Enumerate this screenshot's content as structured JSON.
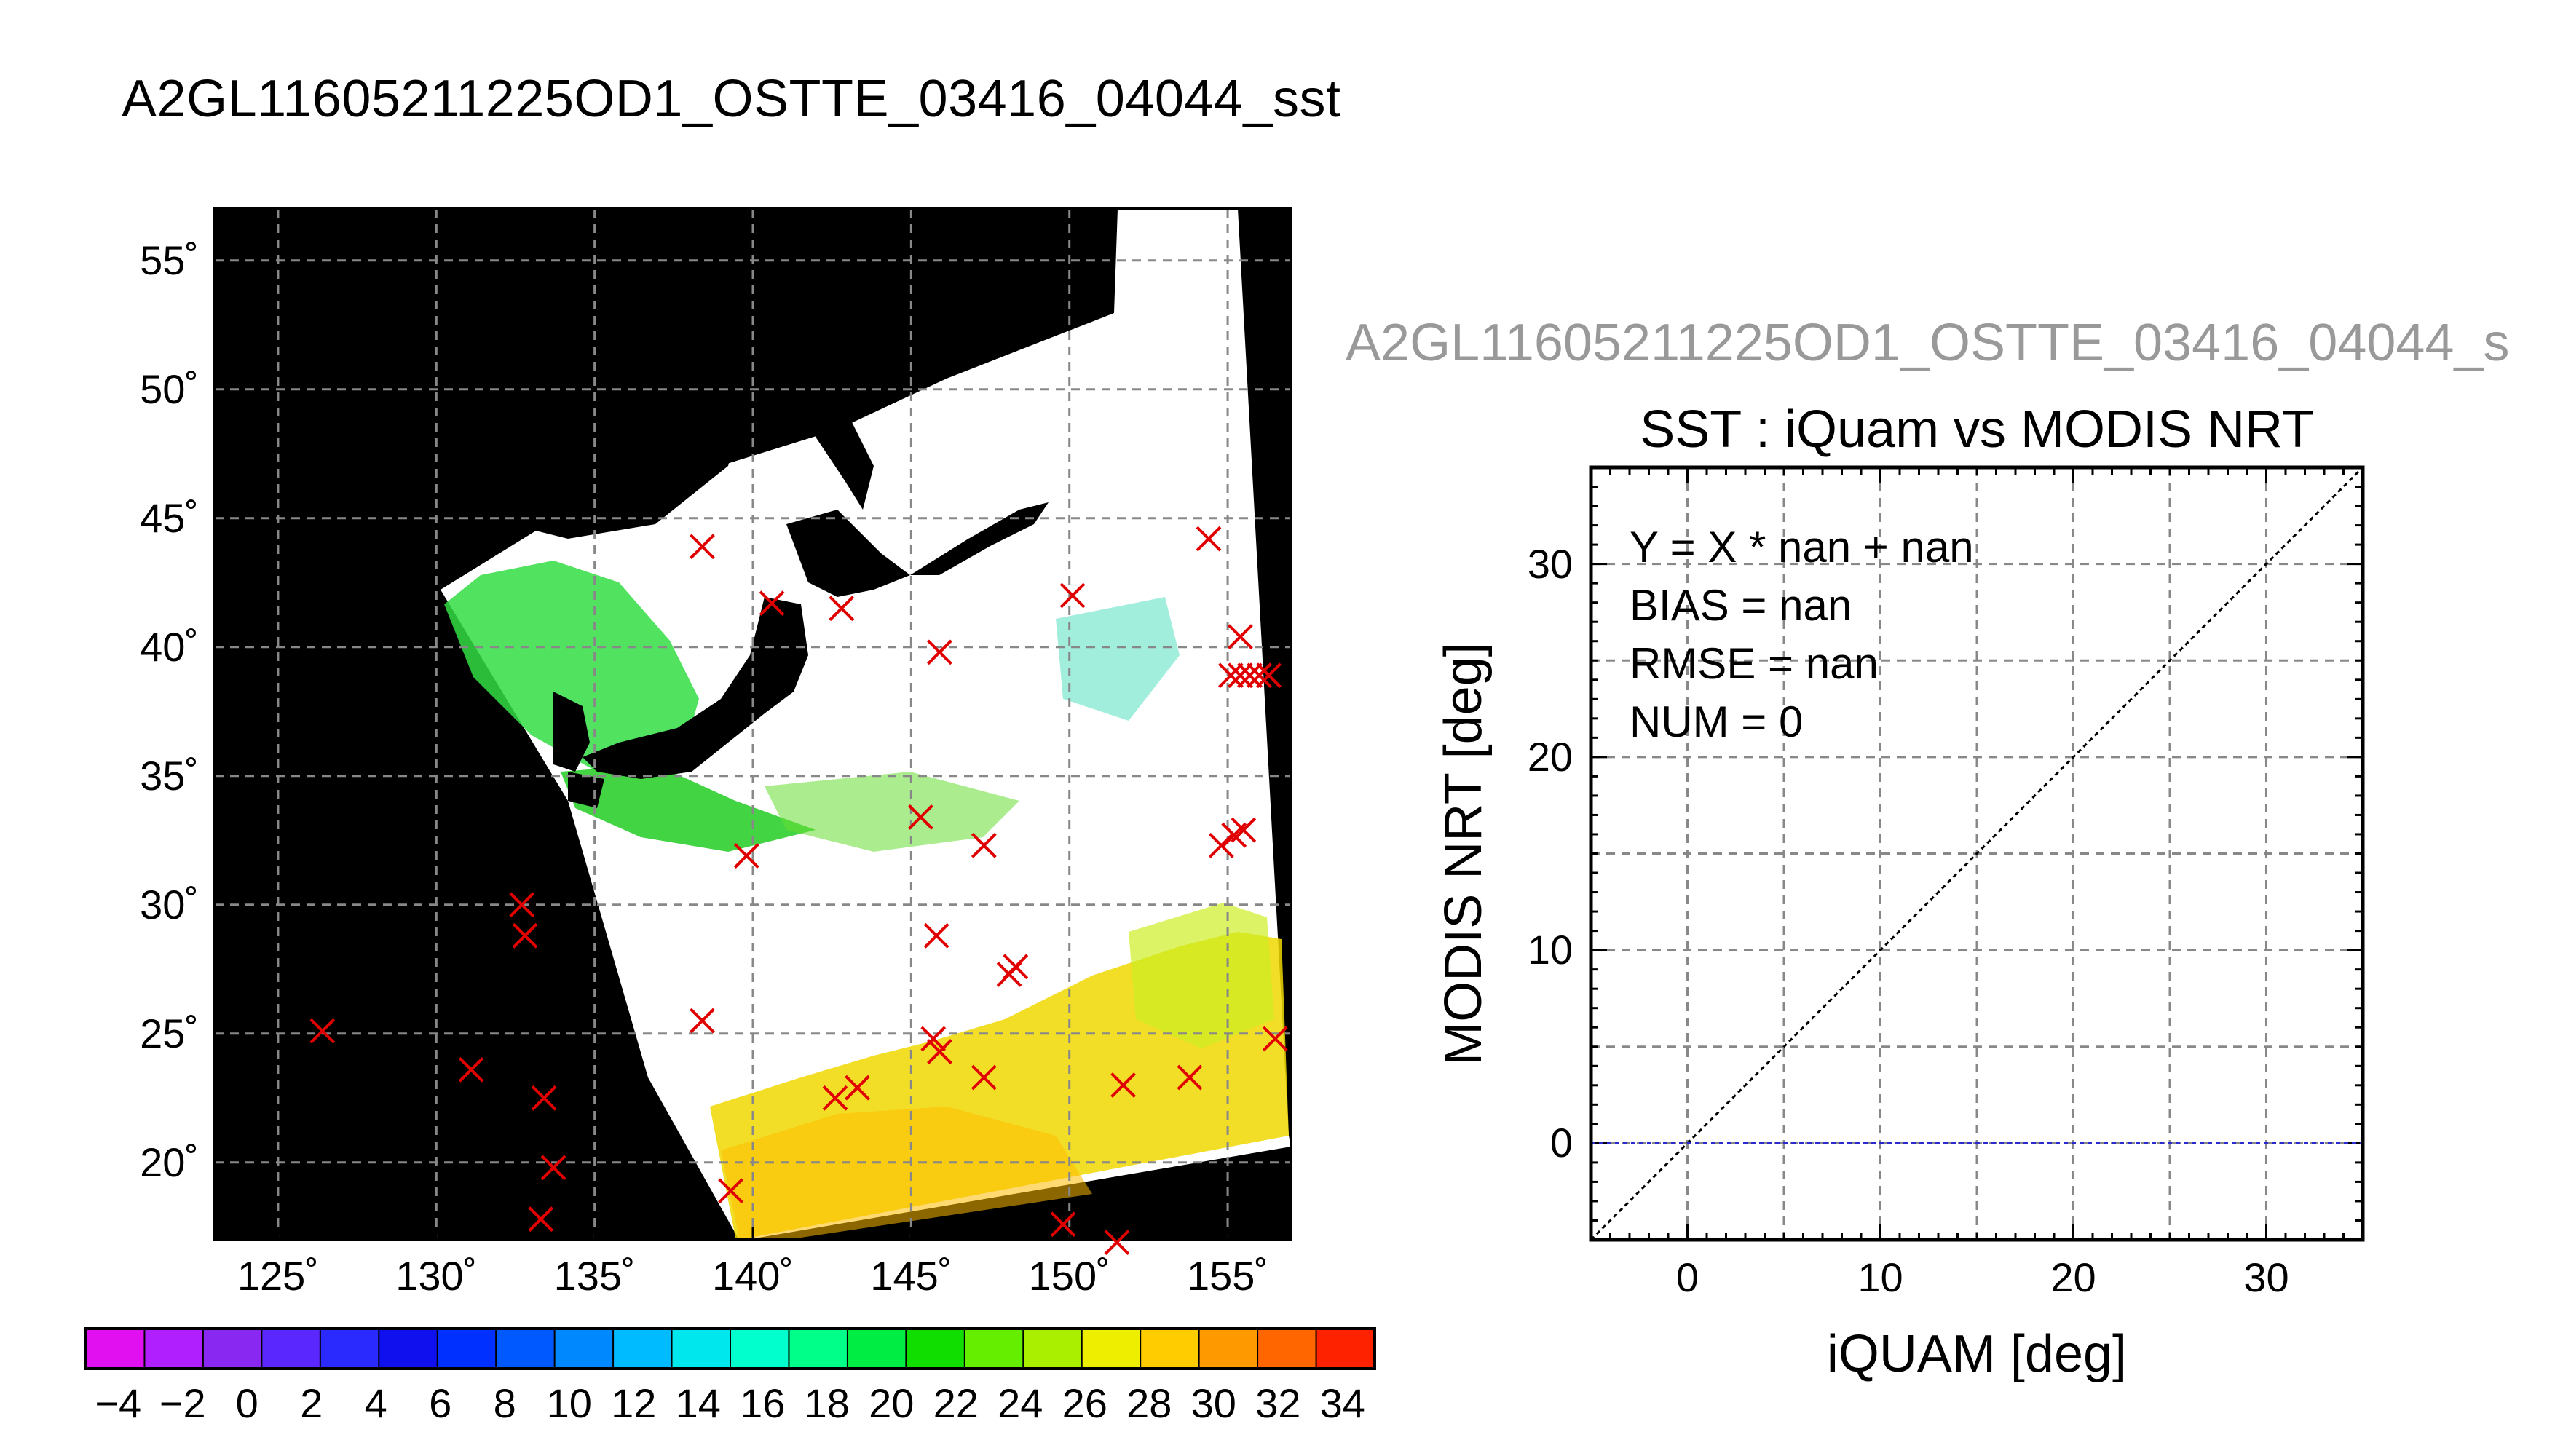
{
  "header": {
    "title": "A2GL11605211225OD1_OSTTE_03416_04044_sst",
    "right_title": "A2GL11605211225OD1_OSTTE_03416_04044_s"
  },
  "colors": {
    "map_background": "#000000",
    "ocean_swath": "#ffffff",
    "marker": "#e00000",
    "regression_line": "#2a2acf",
    "identity_line": "#000000"
  },
  "chart_data": [
    {
      "type": "scatter",
      "title": "",
      "xlabel": "",
      "ylabel": "",
      "xlim": [
        123,
        157
      ],
      "ylim": [
        17,
        57
      ],
      "x_ticks": [
        "125˚",
        "130˚",
        "135˚",
        "140˚",
        "145˚",
        "150˚",
        "155˚"
      ],
      "y_ticks": [
        "20˚",
        "25˚",
        "30˚",
        "35˚",
        "40˚",
        "45˚",
        "50˚",
        "55˚"
      ],
      "x_tick_values": [
        125,
        130,
        135,
        140,
        145,
        150,
        155
      ],
      "y_tick_values": [
        20,
        25,
        30,
        35,
        40,
        45,
        50,
        55
      ],
      "grid": true,
      "marker": "x",
      "points": [
        {
          "lon": 126.4,
          "lat": 25.1
        },
        {
          "lon": 131.1,
          "lat": 23.6
        },
        {
          "lon": 132.7,
          "lat": 30.0
        },
        {
          "lon": 132.8,
          "lat": 28.8
        },
        {
          "lon": 133.4,
          "lat": 22.5
        },
        {
          "lon": 133.7,
          "lat": 19.8
        },
        {
          "lon": 133.3,
          "lat": 17.8
        },
        {
          "lon": 138.4,
          "lat": 43.9
        },
        {
          "lon": 138.4,
          "lat": 25.5
        },
        {
          "lon": 139.3,
          "lat": 18.9
        },
        {
          "lon": 139.8,
          "lat": 31.9
        },
        {
          "lon": 140.6,
          "lat": 41.7
        },
        {
          "lon": 142.8,
          "lat": 41.5
        },
        {
          "lon": 142.6,
          "lat": 22.5
        },
        {
          "lon": 143.3,
          "lat": 22.9
        },
        {
          "lon": 145.3,
          "lat": 33.4
        },
        {
          "lon": 145.9,
          "lat": 39.8
        },
        {
          "lon": 145.8,
          "lat": 28.8
        },
        {
          "lon": 145.7,
          "lat": 24.8
        },
        {
          "lon": 145.9,
          "lat": 24.3
        },
        {
          "lon": 147.3,
          "lat": 32.3
        },
        {
          "lon": 147.3,
          "lat": 23.3
        },
        {
          "lon": 148.1,
          "lat": 27.3
        },
        {
          "lon": 148.3,
          "lat": 27.6
        },
        {
          "lon": 150.1,
          "lat": 42.0
        },
        {
          "lon": 149.8,
          "lat": 17.6
        },
        {
          "lon": 151.5,
          "lat": 16.9
        },
        {
          "lon": 151.7,
          "lat": 23.0
        },
        {
          "lon": 153.8,
          "lat": 23.3
        },
        {
          "lon": 154.4,
          "lat": 44.2
        },
        {
          "lon": 154.8,
          "lat": 32.3
        },
        {
          "lon": 155.2,
          "lat": 32.7
        },
        {
          "lon": 155.5,
          "lat": 32.9
        },
        {
          "lon": 155.4,
          "lat": 40.4
        },
        {
          "lon": 155.1,
          "lat": 38.9
        },
        {
          "lon": 155.4,
          "lat": 38.9
        },
        {
          "lon": 155.7,
          "lat": 38.9
        },
        {
          "lon": 156.0,
          "lat": 38.9
        },
        {
          "lon": 156.3,
          "lat": 38.9
        },
        {
          "lon": 156.5,
          "lat": 24.8
        }
      ]
    },
    {
      "type": "heatmap",
      "title": "",
      "colorbar_ticks": [
        "−4",
        "−2",
        "0",
        "2",
        "4",
        "6",
        "8",
        "10",
        "12",
        "14",
        "16",
        "18",
        "20",
        "22",
        "24",
        "26",
        "28",
        "30",
        "32",
        "34"
      ],
      "range": [
        -5,
        35
      ],
      "step": 2,
      "colors": [
        "#e010f0",
        "#b020ff",
        "#8828f0",
        "#5a28ff",
        "#2a2aff",
        "#1010ee",
        "#0030ff",
        "#0058ff",
        "#0088ff",
        "#00bbff",
        "#00e8ee",
        "#00ffcc",
        "#00ff88",
        "#00ee44",
        "#10dd00",
        "#66ee00",
        "#aaee00",
        "#eeee00",
        "#ffcc00",
        "#ff9900",
        "#ff6600",
        "#ff2200"
      ]
    },
    {
      "type": "scatter",
      "title": "SST : iQuam vs MODIS NRT",
      "xlabel": "iQUAM [deg]",
      "ylabel": "MODIS NRT [deg]",
      "xlim": [
        -5,
        35
      ],
      "ylim": [
        -5,
        35
      ],
      "x_ticks": [
        "0",
        "10",
        "20",
        "30"
      ],
      "y_ticks": [
        "0",
        "10",
        "20",
        "30"
      ],
      "x_tick_values": [
        0,
        10,
        20,
        30
      ],
      "y_tick_values": [
        0,
        10,
        20,
        30
      ],
      "grid": true,
      "points": [],
      "lines": [
        {
          "kind": "identity",
          "from": [
            -5,
            -5
          ],
          "to": [
            35,
            35
          ]
        },
        {
          "kind": "zero",
          "from": [
            -5,
            0
          ],
          "to": [
            35,
            0
          ]
        }
      ],
      "annotations": [
        "Y = X * nan + nan",
        "BIAS = nan",
        "RMSE = nan",
        "NUM = 0"
      ]
    }
  ]
}
